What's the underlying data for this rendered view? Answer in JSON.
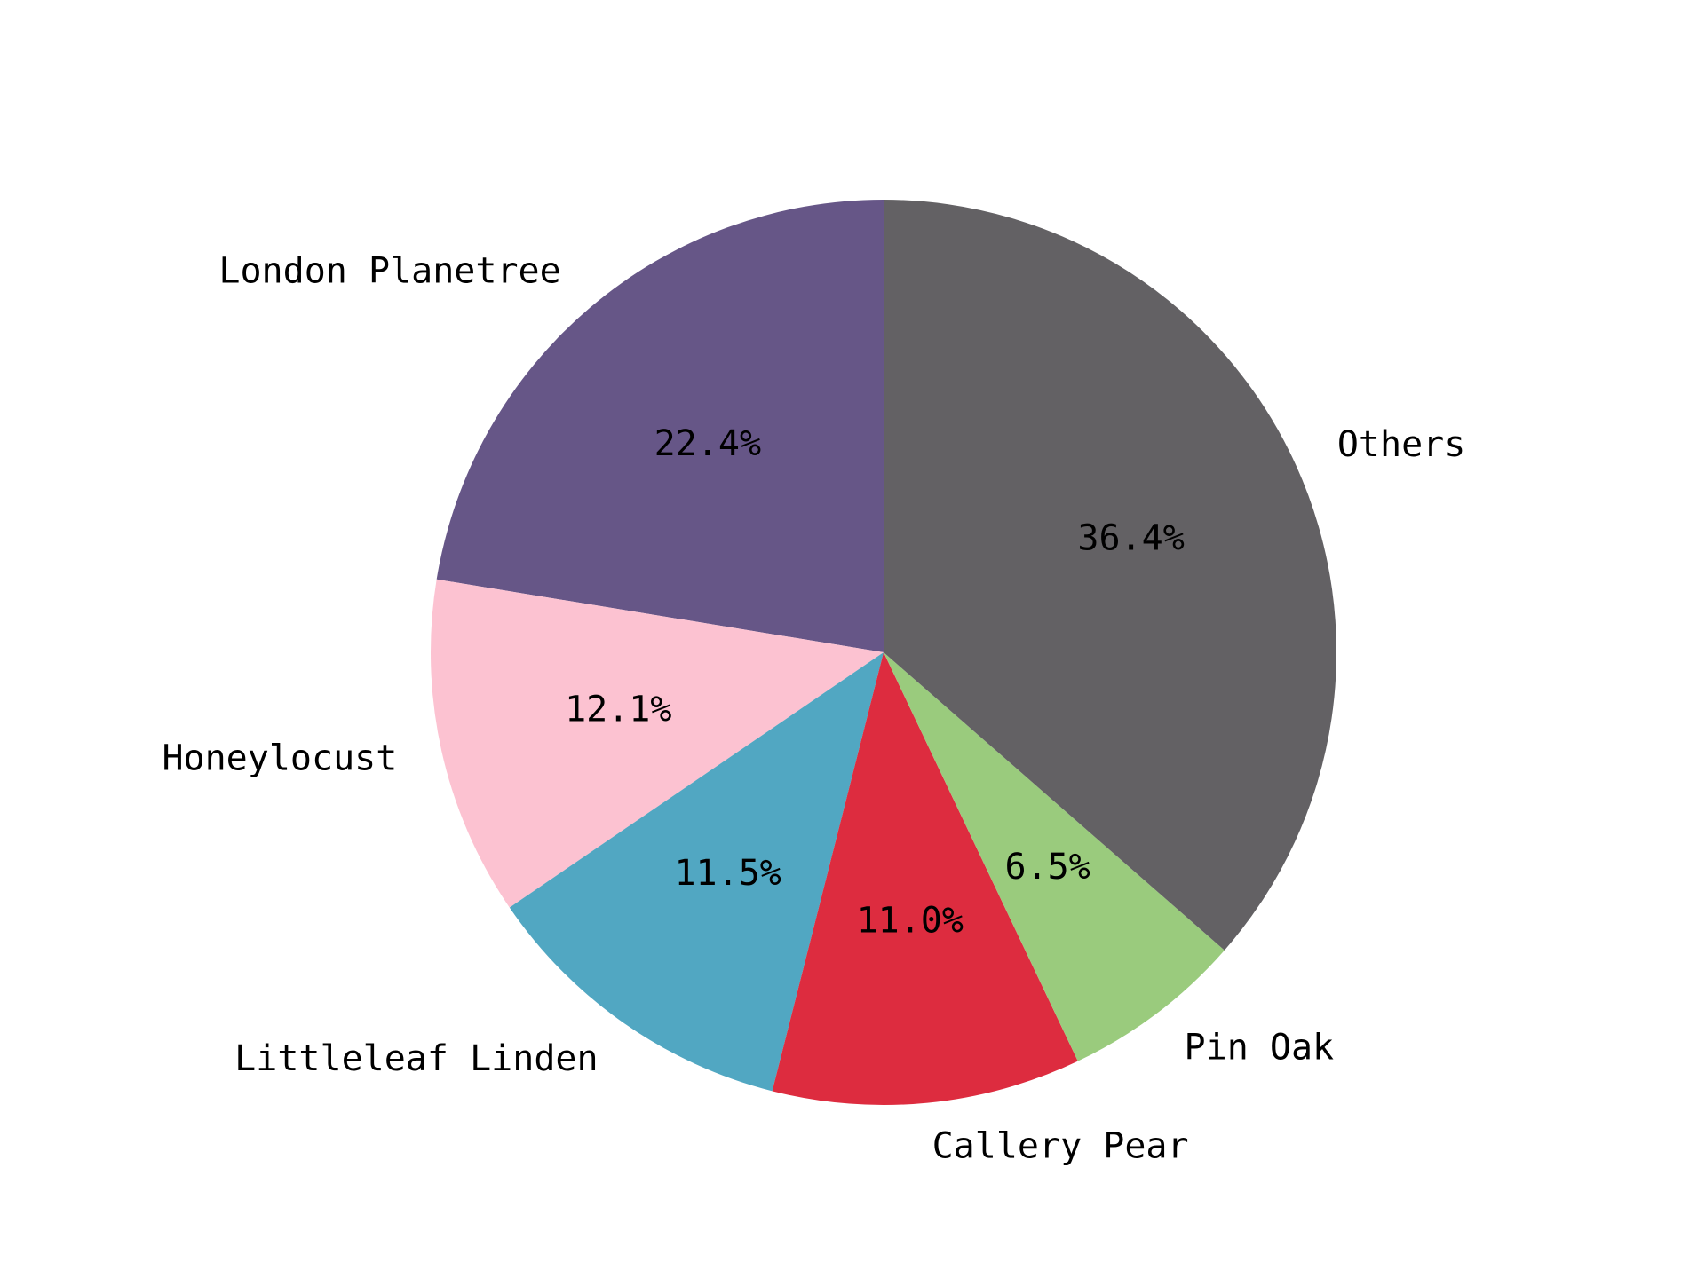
{
  "chart_data": {
    "type": "pie",
    "title": "",
    "start_angle": "12 o'clock",
    "direction": "counterclockwise",
    "slices": [
      {
        "label": "London Planetree",
        "value": 22.4,
        "pct_text": "22.4%",
        "color": "#665687"
      },
      {
        "label": "Honeylocust",
        "value": 12.1,
        "pct_text": "12.1%",
        "color": "#fcc2d1"
      },
      {
        "label": "Littleleaf Linden",
        "value": 11.5,
        "pct_text": "11.5%",
        "color": "#51a7c2"
      },
      {
        "label": "Callery Pear",
        "value": 11.0,
        "pct_text": "11.0%",
        "color": "#dd2c3f"
      },
      {
        "label": "Pin Oak",
        "value": 6.5,
        "pct_text": "6.5%",
        "color": "#9acb7d"
      },
      {
        "label": "Others",
        "value": 36.4,
        "pct_text": "36.4%",
        "color": "#636164"
      }
    ]
  }
}
